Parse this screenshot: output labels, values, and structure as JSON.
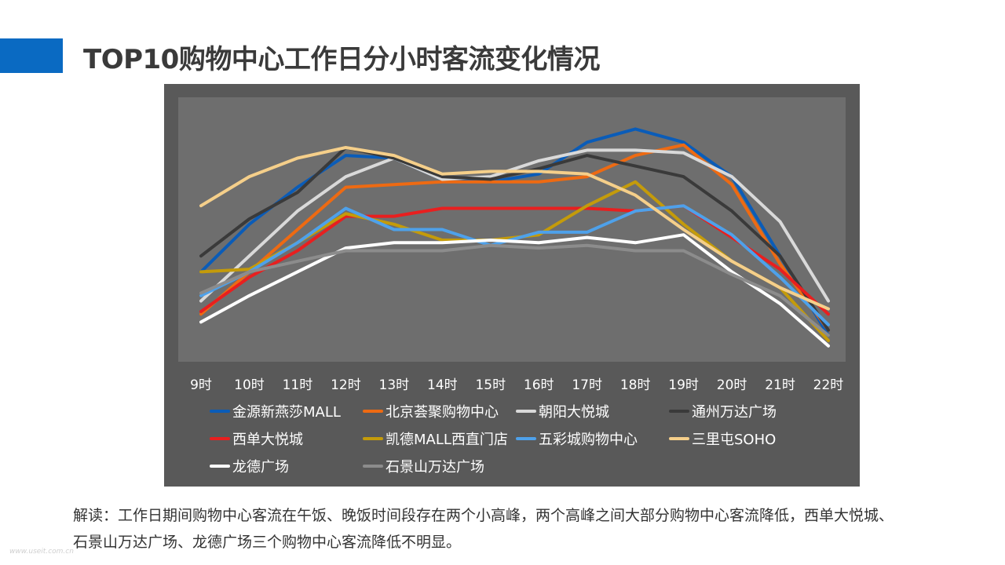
{
  "header": {
    "accent_color": "#0a6ac2",
    "title": "TOP10购物中心工作日分小时客流变化情况"
  },
  "chart_data": {
    "type": "line",
    "title": "",
    "xlabel": "",
    "ylabel": "",
    "grid": false,
    "legend_position": "bottom",
    "ylim": [
      0,
      100
    ],
    "categories": [
      "9时",
      "10时",
      "11时",
      "12时",
      "13时",
      "14时",
      "15时",
      "16时",
      "17时",
      "18时",
      "19时",
      "20时",
      "21时",
      "22时"
    ],
    "series": [
      {
        "name": "金源新燕莎MALL",
        "color": "#0a5cb8",
        "values": [
          34,
          52,
          66,
          78,
          77,
          69,
          68,
          71,
          83,
          88,
          83,
          70,
          40,
          10
        ]
      },
      {
        "name": "北京荟聚购物中心",
        "color": "#ee6a12",
        "values": [
          18,
          34,
          50,
          66,
          67,
          68,
          68,
          68,
          70,
          78,
          82,
          67,
          37,
          12
        ]
      },
      {
        "name": "朝阳大悦城",
        "color": "#d9d9d9",
        "values": [
          23,
          40,
          57,
          70,
          77,
          69,
          70,
          76,
          80,
          80,
          79,
          70,
          53,
          23
        ]
      },
      {
        "name": "通州万达广场",
        "color": "#3a3a3a",
        "values": [
          40,
          54,
          64,
          81,
          77,
          70,
          69,
          73,
          78,
          74,
          70,
          57,
          40,
          12
        ]
      },
      {
        "name": "西单大悦城",
        "color": "#e81f1f",
        "values": [
          19,
          32,
          42,
          55,
          55,
          58,
          58,
          58,
          58,
          57,
          59,
          47,
          35,
          18
        ]
      },
      {
        "name": "凯德MALL西直门店",
        "color": "#c49b0a",
        "values": [
          34,
          35,
          45,
          56,
          52,
          46,
          46,
          48,
          59,
          68,
          52,
          38,
          28,
          8
        ]
      },
      {
        "name": "五彩城购物中心",
        "color": "#4ea1ea",
        "values": [
          25,
          34,
          45,
          58,
          50,
          50,
          44,
          49,
          49,
          57,
          59,
          48,
          32,
          14
        ]
      },
      {
        "name": "三里屯SOHO",
        "color": "#f5cf8a",
        "values": [
          59,
          70,
          77,
          81,
          78,
          71,
          72,
          72,
          71,
          63,
          50,
          38,
          28,
          20
        ]
      },
      {
        "name": "龙德广场",
        "color": "#ffffff",
        "values": [
          15,
          25,
          34,
          43,
          45,
          45,
          46,
          45,
          47,
          45,
          48,
          34,
          22,
          6
        ]
      },
      {
        "name": "石景山万达广场",
        "color": "#8c8c8c",
        "values": [
          26,
          34,
          38,
          42,
          42,
          42,
          44,
          43,
          44,
          42,
          42,
          33,
          25,
          10
        ]
      }
    ]
  },
  "footnote": {
    "line1": "解读：工作日期间购物中心客流在午饭、晚饭时间段存在两个小高峰，两个高峰之间大部分购物中心客流降低，西单大悦城、",
    "line2": "石景山万达广场、龙德广场三个购物中心客流降低不明显。"
  },
  "watermark": "www.useit.com.cn"
}
